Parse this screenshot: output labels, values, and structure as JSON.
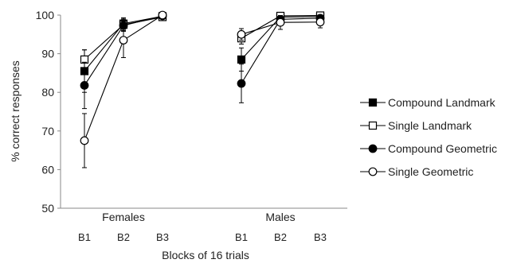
{
  "chart_data": {
    "type": "line",
    "title": "",
    "ylabel": "% correct responses",
    "xlabel": "Blocks of 16 trials",
    "ylim": [
      50,
      100
    ],
    "yticks": [
      50,
      60,
      70,
      80,
      90,
      100
    ],
    "grid": false,
    "legend_position": "right",
    "groups": [
      {
        "name": "Females",
        "blocks": [
          "B1",
          "B2",
          "B3"
        ]
      },
      {
        "name": "Males",
        "blocks": [
          "B1",
          "B2",
          "B3"
        ]
      }
    ],
    "series": [
      {
        "name": "Compound Landmark",
        "marker": "filled-square",
        "color": "#000000",
        "values": {
          "Females": [
            85.5,
            97.8,
            99.7
          ],
          "Males": [
            88.5,
            99.5,
            99.6
          ]
        },
        "errors": {
          "Females": [
            5.5,
            1.5,
            0.4
          ],
          "Males": [
            3,
            0.6,
            0.5
          ]
        }
      },
      {
        "name": "Single Landmark",
        "marker": "open-square",
        "color": "#000000",
        "values": {
          "Females": [
            88.5,
            97.5,
            99.5
          ],
          "Males": [
            94,
            99.8,
            99.9
          ]
        },
        "errors": {
          "Females": [
            2.5,
            1.5,
            0.5
          ],
          "Males": [
            1.5,
            0.5,
            0.4
          ]
        }
      },
      {
        "name": "Compound Geometric",
        "marker": "filled-circle",
        "color": "#000000",
        "values": {
          "Females": [
            81.8,
            97.3,
            99.8
          ],
          "Males": [
            82.3,
            98.9,
            99.2
          ]
        },
        "errors": {
          "Females": [
            6,
            1.5,
            0.3
          ],
          "Males": [
            5,
            1,
            0.6
          ]
        }
      },
      {
        "name": "Single Geometric",
        "marker": "open-circle",
        "color": "#000000",
        "values": {
          "Females": [
            67.5,
            93.5,
            100
          ],
          "Males": [
            95,
            98.1,
            98.2
          ]
        },
        "errors": {
          "Females": [
            7,
            4.5,
            0.3
          ],
          "Males": [
            1.5,
            1.8,
            1.5
          ]
        }
      }
    ]
  }
}
